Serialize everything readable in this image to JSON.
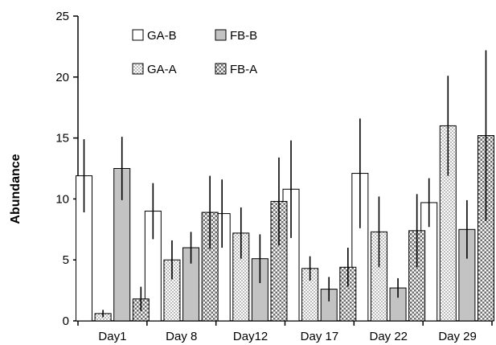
{
  "chart_data": {
    "type": "bar",
    "ylabel": "Abundance",
    "xlabel": "",
    "ylim": [
      0,
      25
    ],
    "yticks": [
      0,
      5,
      10,
      15,
      20,
      25
    ],
    "categories": [
      "Day1",
      "Day 8",
      "Day12",
      "Day 17",
      "Day 22",
      "Day 29"
    ],
    "series": [
      {
        "name": "GA-B",
        "pattern": "white",
        "values": [
          11.9,
          9.0,
          8.8,
          10.8,
          12.1,
          9.7
        ],
        "errors": [
          3.0,
          2.3,
          2.8,
          4.0,
          4.5,
          2.0
        ]
      },
      {
        "name": "GA-A",
        "pattern": "dotted",
        "values": [
          0.6,
          5.0,
          7.2,
          4.3,
          7.3,
          16.0
        ],
        "errors": [
          0.3,
          1.6,
          2.1,
          1.0,
          2.9,
          4.1
        ]
      },
      {
        "name": "FB-B",
        "pattern": "gray",
        "values": [
          12.5,
          6.0,
          5.1,
          2.6,
          2.7,
          7.5
        ],
        "errors": [
          2.6,
          1.3,
          2.0,
          1.0,
          0.8,
          2.4
        ]
      },
      {
        "name": "FB-A",
        "pattern": "checkered",
        "values": [
          1.8,
          8.9,
          9.8,
          4.4,
          7.4,
          15.2
        ],
        "errors": [
          1.0,
          3.0,
          3.6,
          1.6,
          3.0,
          7.0
        ]
      }
    ],
    "legend_position": "top",
    "grid": false
  }
}
